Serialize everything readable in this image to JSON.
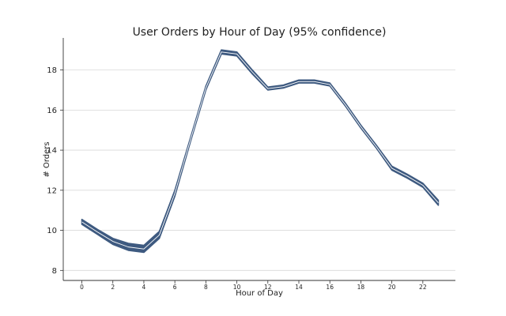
{
  "chart_data": {
    "type": "line",
    "title": "User Orders by Hour of Day (95% confidence)",
    "xlabel": "Hour of Day",
    "ylabel": "# Orders",
    "xlim": [
      -1.2,
      24.1
    ],
    "ylim": [
      7.5,
      19.6
    ],
    "x_ticks": [
      0,
      2,
      4,
      6,
      8,
      10,
      12,
      14,
      16,
      18,
      20,
      22
    ],
    "y_ticks": [
      8,
      10,
      12,
      14,
      16,
      18
    ],
    "grid": "horizontal",
    "colors": {
      "band": "#3e5a80",
      "line": "#ffffff"
    },
    "series": [
      {
        "x": [
          0,
          1,
          2,
          3,
          4,
          5,
          6,
          7,
          8,
          9,
          10,
          11,
          12,
          13,
          14,
          15,
          16,
          17,
          18,
          19,
          20,
          21,
          22,
          23
        ],
        "lower": [
          10.3,
          9.8,
          9.3,
          9.0,
          8.9,
          9.6,
          11.7,
          14.4,
          17.0,
          18.8,
          18.7,
          17.8,
          17.0,
          17.1,
          17.35,
          17.35,
          17.2,
          16.2,
          15.1,
          14.1,
          13.0,
          12.6,
          12.15,
          11.25
        ],
        "upper": [
          10.55,
          10.05,
          9.6,
          9.35,
          9.25,
          9.95,
          12.0,
          14.6,
          17.2,
          19.0,
          18.9,
          18.0,
          17.15,
          17.25,
          17.5,
          17.5,
          17.35,
          16.35,
          15.25,
          14.25,
          13.2,
          12.8,
          12.35,
          11.5
        ],
        "mean": [
          10.42,
          9.92,
          9.45,
          9.17,
          9.07,
          9.77,
          11.85,
          14.5,
          17.1,
          18.9,
          18.8,
          17.9,
          17.07,
          17.17,
          17.42,
          17.42,
          17.27,
          16.27,
          15.17,
          14.17,
          13.1,
          12.7,
          12.25,
          11.37
        ]
      }
    ]
  }
}
